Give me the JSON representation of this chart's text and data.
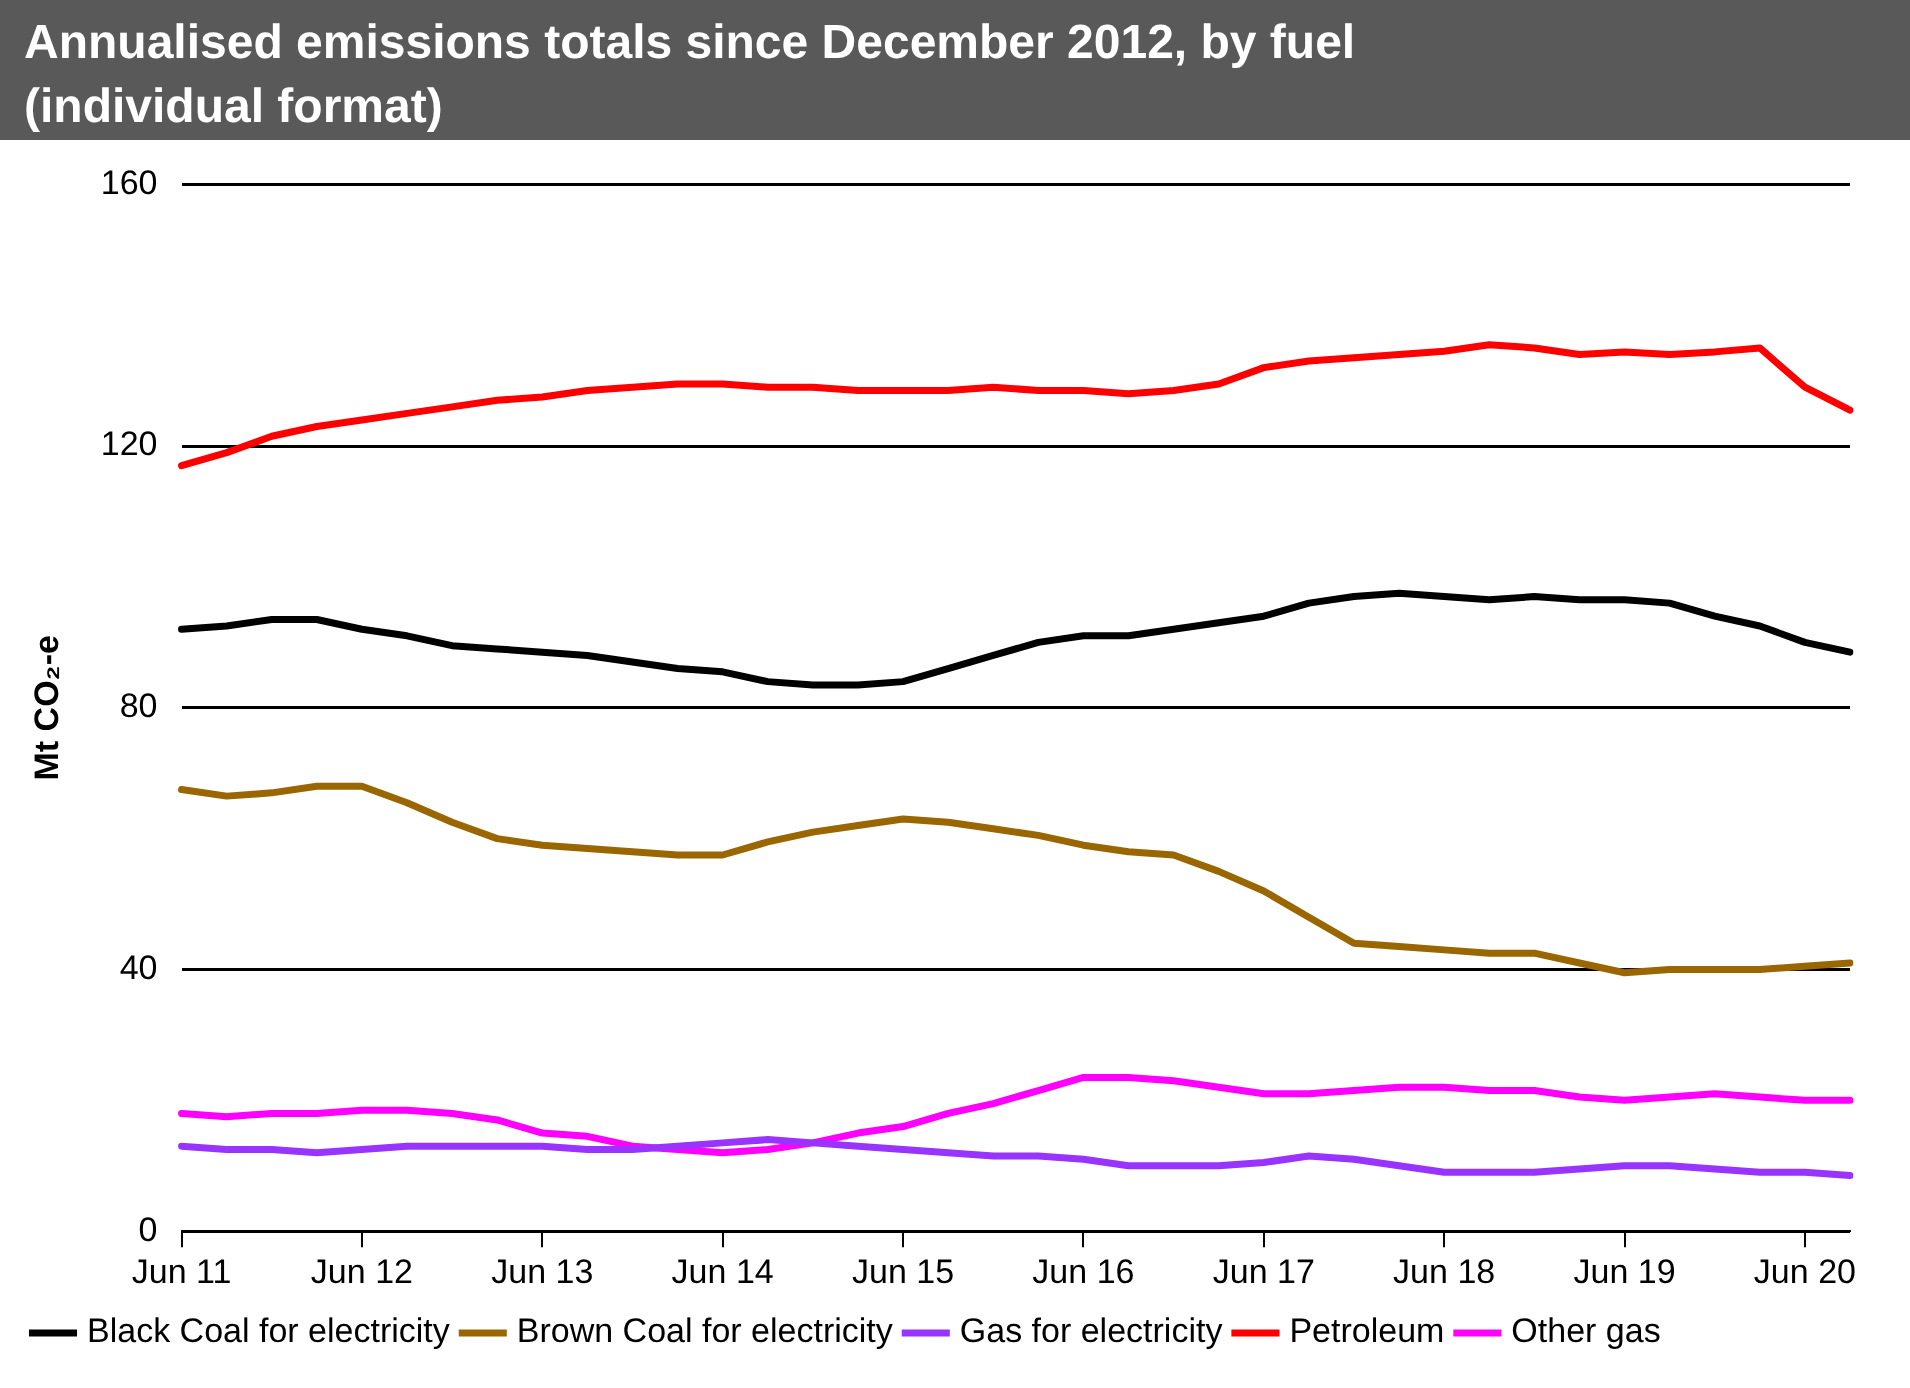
{
  "chart_data": {
    "type": "line",
    "title": "Annualised emissions totals since December 2012, by fuel (individual format)",
    "ylabel": "Mt CO₂-e",
    "categories": [
      "Jun 11",
      null,
      null,
      null,
      "Jun 12",
      null,
      null,
      null,
      "Jun 13",
      null,
      null,
      null,
      "Jun 14",
      null,
      null,
      null,
      "Jun 15",
      null,
      null,
      null,
      "Jun 16",
      null,
      null,
      null,
      "Jun 17",
      null,
      null,
      null,
      "Jun 18",
      null,
      null,
      null,
      "Jun 19",
      null,
      null,
      null,
      "Jun 20",
      null
    ],
    "ylim": [
      0,
      160
    ],
    "yticks": [
      0,
      40,
      80,
      120,
      160
    ],
    "grid": "y",
    "legend": "bottom",
    "marker": "none",
    "line_style": "solid",
    "series": [
      {
        "name": "Black Coal for electricity",
        "color": "#000000",
        "values": [
          92,
          92.5,
          93.5,
          93.5,
          92,
          91,
          89.5,
          89,
          88.5,
          88,
          87,
          86,
          85.5,
          84,
          83.5,
          83.5,
          84,
          86,
          88,
          90,
          91,
          91,
          92,
          93,
          94,
          96,
          97,
          97.5,
          97,
          96.5,
          97,
          96.5,
          96.5,
          96,
          94,
          92.5,
          90,
          88.5
        ]
      },
      {
        "name": "Brown Coal for electricity",
        "color": "#996600",
        "values": [
          67.5,
          66.5,
          67,
          68,
          68,
          65.5,
          62.5,
          60,
          59,
          58.5,
          58,
          57.5,
          57.5,
          59.5,
          61,
          62,
          63,
          62.5,
          61.5,
          60.5,
          59,
          58,
          57.5,
          55,
          52,
          48,
          44,
          43.5,
          43,
          42.5,
          42.5,
          41,
          39.5,
          40,
          40,
          40,
          40.5,
          41
        ]
      },
      {
        "name": "Gas for electricity",
        "color": "#9933ff",
        "values": [
          13,
          12.5,
          12.5,
          12,
          12.5,
          13,
          13,
          13,
          13,
          12.5,
          12.5,
          13,
          13.5,
          14,
          13.5,
          13,
          12.5,
          12,
          11.5,
          11.5,
          11,
          10,
          10,
          10,
          10.5,
          11.5,
          11,
          10,
          9,
          9,
          9,
          9.5,
          10,
          10,
          9.5,
          9,
          9,
          8.5
        ]
      },
      {
        "name": "Petroleum",
        "color": "#ff0000",
        "values": [
          117,
          119,
          121.5,
          123,
          124,
          125,
          126,
          127,
          127.5,
          128.5,
          129,
          129.5,
          129.5,
          129,
          129,
          128.5,
          128.5,
          128.5,
          129,
          128.5,
          128.5,
          128,
          128.5,
          129.5,
          132,
          133,
          133.5,
          134,
          134.5,
          135.5,
          135,
          134,
          134.4,
          134,
          134.4,
          135,
          129,
          125.5
        ]
      },
      {
        "name": "Other gas",
        "color": "#ff00ff",
        "values": [
          18,
          17.5,
          18,
          18,
          18.5,
          18.5,
          18,
          17,
          15,
          14.5,
          13,
          12.5,
          12,
          12.5,
          13.5,
          15,
          16,
          18,
          19.5,
          21.5,
          23.5,
          23.5,
          23,
          22,
          21,
          21,
          21.5,
          22,
          22,
          21.5,
          21.5,
          20.5,
          20,
          20.5,
          21,
          20.5,
          20,
          20
        ]
      }
    ]
  }
}
